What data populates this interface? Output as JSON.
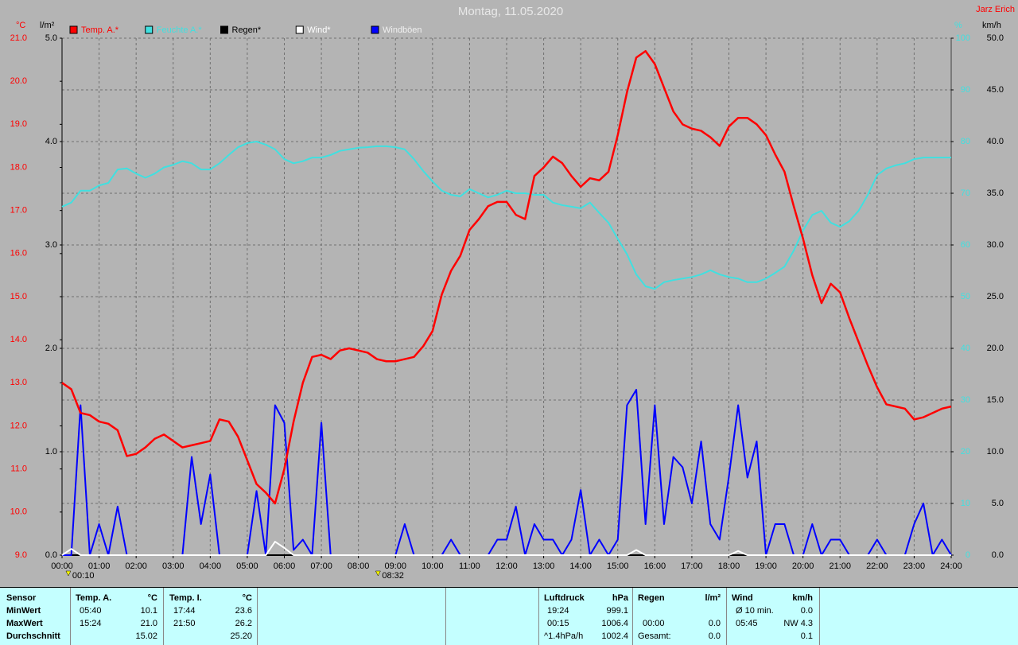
{
  "chart_data": {
    "type": "line",
    "title": "Montag, 11.05.2020",
    "author": "Jarz Erich",
    "axis_labels": {
      "y": "°C",
      "y3": "l/m²",
      "y2": "%",
      "y4": "km/h"
    },
    "xlim": [
      0,
      24
    ],
    "xticks": [
      {
        "value": 0,
        "label": "00:00"
      },
      {
        "value": 1,
        "label": "01:00"
      },
      {
        "value": 2,
        "label": "02:00"
      },
      {
        "value": 3,
        "label": "03:00"
      },
      {
        "value": 4,
        "label": "04:00"
      },
      {
        "value": 5,
        "label": "05:00"
      },
      {
        "value": 6,
        "label": "06:00"
      },
      {
        "value": 7,
        "label": "07:00"
      },
      {
        "value": 8,
        "label": "08:00"
      },
      {
        "value": 9,
        "label": "09:00"
      },
      {
        "value": 10,
        "label": "10:00"
      },
      {
        "value": 11,
        "label": "11:00"
      },
      {
        "value": 12,
        "label": "12:00"
      },
      {
        "value": 13,
        "label": "13:00"
      },
      {
        "value": 14,
        "label": "14:00"
      },
      {
        "value": 15,
        "label": "15:00"
      },
      {
        "value": 16,
        "label": "16:00"
      },
      {
        "value": 17,
        "label": "17:00"
      },
      {
        "value": 18,
        "label": "18:00"
      },
      {
        "value": 19,
        "label": "19:00"
      },
      {
        "value": 20,
        "label": "20:00"
      },
      {
        "value": 21,
        "label": "21:00"
      },
      {
        "value": 22,
        "label": "22:00"
      },
      {
        "value": 23,
        "label": "23:00"
      },
      {
        "value": 24,
        "label": "24:00"
      }
    ],
    "ylim": [
      9,
      21
    ],
    "yticks": [
      {
        "value": 9,
        "label": "9.0"
      },
      {
        "value": 10,
        "label": "10.0"
      },
      {
        "value": 11,
        "label": "11.0"
      },
      {
        "value": 12,
        "label": "12.0"
      },
      {
        "value": 13,
        "label": "13.0"
      },
      {
        "value": 14,
        "label": "14.0"
      },
      {
        "value": 15,
        "label": "15.0"
      },
      {
        "value": 16,
        "label": "16.0"
      },
      {
        "value": 17,
        "label": "17.0"
      },
      {
        "value": 18,
        "label": "18.0"
      },
      {
        "value": 19,
        "label": "19.0"
      },
      {
        "value": 20,
        "label": "20.0"
      },
      {
        "value": 21,
        "label": "21.0"
      }
    ],
    "y3lim": [
      0,
      5
    ],
    "y3ticks": [
      {
        "value": 0,
        "label": "0.0"
      },
      {
        "value": 1,
        "label": "1.0"
      },
      {
        "value": 2,
        "label": "2.0"
      },
      {
        "value": 3,
        "label": "3.0"
      },
      {
        "value": 4,
        "label": "4.0"
      },
      {
        "value": 5,
        "label": "5.0"
      }
    ],
    "y2lim": [
      0,
      100
    ],
    "y2ticks": [
      0,
      10,
      20,
      30,
      40,
      50,
      60,
      70,
      80,
      90,
      100
    ],
    "y4lim": [
      0,
      50
    ],
    "y4ticks": [
      {
        "value": 0,
        "label": "0.0"
      },
      {
        "value": 5,
        "label": "5.0"
      },
      {
        "value": 10,
        "label": "10.0"
      },
      {
        "value": 15,
        "label": "15.0"
      },
      {
        "value": 20,
        "label": "20.0"
      },
      {
        "value": 25,
        "label": "25.0"
      },
      {
        "value": 30,
        "label": "30.0"
      },
      {
        "value": 35,
        "label": "35.0"
      },
      {
        "value": 40,
        "label": "40.0"
      },
      {
        "value": 45,
        "label": "45.0"
      },
      {
        "value": 50,
        "label": "50.0"
      }
    ],
    "grid": true,
    "x": [
      0,
      0.25,
      0.5,
      0.75,
      1,
      1.25,
      1.5,
      1.75,
      2,
      2.25,
      2.5,
      2.75,
      3,
      3.25,
      3.5,
      3.75,
      4,
      4.25,
      4.5,
      4.75,
      5,
      5.25,
      5.5,
      5.75,
      6,
      6.25,
      6.5,
      6.75,
      7,
      7.25,
      7.5,
      7.75,
      8,
      8.25,
      8.5,
      8.75,
      9,
      9.25,
      9.5,
      9.75,
      10,
      10.25,
      10.5,
      10.75,
      11,
      11.25,
      11.5,
      11.75,
      12,
      12.25,
      12.5,
      12.75,
      13,
      13.25,
      13.5,
      13.75,
      14,
      14.25,
      14.5,
      14.75,
      15,
      15.25,
      15.5,
      15.75,
      16,
      16.25,
      16.5,
      16.75,
      17,
      17.25,
      17.5,
      17.75,
      18,
      18.25,
      18.5,
      18.75,
      19,
      19.25,
      19.5,
      19.75,
      20,
      20.25,
      20.5,
      20.75,
      21,
      21.25,
      21.5,
      21.75,
      22,
      22.25,
      22.5,
      22.75,
      23,
      23.25,
      23.5,
      23.75,
      24
    ],
    "series": [
      {
        "name": "Temp. A.*",
        "color": "#ff0000",
        "axis": "y",
        "values": [
          13.0,
          12.85,
          12.3,
          12.25,
          12.1,
          12.05,
          11.9,
          11.3,
          11.35,
          11.5,
          11.7,
          11.8,
          11.65,
          11.5,
          11.55,
          11.6,
          11.65,
          12.15,
          12.1,
          11.75,
          11.2,
          10.65,
          10.45,
          10.2,
          11.0,
          12.1,
          13.0,
          13.6,
          13.65,
          13.55,
          13.75,
          13.8,
          13.75,
          13.7,
          13.55,
          13.5,
          13.5,
          13.55,
          13.6,
          13.85,
          14.2,
          15.05,
          15.6,
          15.95,
          16.55,
          16.8,
          17.1,
          17.2,
          17.2,
          16.9,
          16.8,
          17.8,
          18.0,
          18.25,
          18.1,
          17.8,
          17.55,
          17.75,
          17.7,
          17.9,
          18.75,
          19.75,
          20.55,
          20.7,
          20.4,
          19.85,
          19.3,
          19.0,
          18.9,
          18.85,
          18.7,
          18.5,
          18.95,
          19.15,
          19.15,
          19.0,
          18.75,
          18.3,
          17.9,
          17.1,
          16.35,
          15.5,
          14.85,
          15.3,
          15.1,
          14.5,
          13.95,
          13.4,
          12.9,
          12.5,
          12.45,
          12.4,
          12.15,
          12.2,
          12.3,
          12.4,
          12.45
        ]
      },
      {
        "name": "Feuchte A.*",
        "color": "#40e0e0",
        "axis": "y2",
        "values": [
          67.4,
          68.2,
          70.5,
          70.5,
          71.5,
          72,
          74.6,
          74.8,
          73.8,
          73,
          73.8,
          75,
          75.5,
          76.2,
          75.8,
          74.6,
          74.6,
          75.8,
          77.4,
          78.9,
          79.7,
          80,
          79.4,
          78.5,
          76.6,
          75.8,
          76.2,
          76.9,
          76.9,
          77.4,
          78.2,
          78.5,
          78.8,
          78.9,
          79.1,
          79.1,
          78.9,
          78.5,
          76.6,
          74.3,
          72.3,
          70.5,
          69.7,
          69.4,
          70.8,
          70,
          69.2,
          69.7,
          70.5,
          70,
          70,
          69.7,
          69.7,
          68.2,
          67.7,
          67.4,
          67.1,
          68.2,
          66.2,
          64.3,
          61.2,
          58.2,
          54.3,
          52,
          51.5,
          52.8,
          53.2,
          53.5,
          53.8,
          54.3,
          55.1,
          54.3,
          53.8,
          53.5,
          52.8,
          52.8,
          53.5,
          54.6,
          55.8,
          58.9,
          62.8,
          65.8,
          66.6,
          64.3,
          63.5,
          64.6,
          66.6,
          69.7,
          73.5,
          74.8,
          75.4,
          75.8,
          76.6,
          76.9,
          76.9,
          76.9,
          76.9
        ]
      },
      {
        "name": "Regen*",
        "color": "#000000",
        "axis": "y3",
        "values": [
          0,
          0,
          0,
          0,
          0,
          0,
          0,
          0,
          0,
          0,
          0,
          0,
          0,
          0,
          0,
          0,
          0,
          0,
          0,
          0,
          0,
          0,
          0,
          0,
          0,
          0,
          0,
          0,
          0,
          0,
          0,
          0,
          0,
          0,
          0,
          0,
          0,
          0,
          0,
          0,
          0,
          0,
          0,
          0,
          0,
          0,
          0,
          0,
          0,
          0,
          0,
          0,
          0,
          0,
          0,
          0,
          0,
          0,
          0,
          0,
          0,
          0,
          0,
          0,
          0,
          0,
          0,
          0,
          0,
          0,
          0,
          0,
          0,
          0,
          0,
          0,
          0,
          0,
          0,
          0,
          0,
          0,
          0,
          0,
          0,
          0,
          0,
          0,
          0,
          0,
          0,
          0,
          0,
          0,
          0,
          0,
          0
        ]
      },
      {
        "name": "Wind*",
        "color": "#ffffff",
        "axis": "y4",
        "values": [
          0,
          0.6,
          0,
          0,
          0,
          0,
          0,
          0,
          0,
          0,
          0,
          0,
          0,
          0,
          0,
          0,
          0,
          0,
          0,
          0,
          0,
          0,
          0,
          1.3,
          0.7,
          0,
          0,
          0,
          0,
          0,
          0,
          0,
          0,
          0,
          0,
          0,
          0,
          0,
          0,
          0,
          0,
          0,
          0,
          0,
          0,
          0,
          0,
          0,
          0,
          0,
          0,
          0,
          0,
          0,
          0,
          0,
          0,
          0,
          0,
          0,
          0,
          0,
          0.5,
          0,
          0,
          0,
          0,
          0,
          0,
          0,
          0,
          0,
          0,
          0.4,
          0,
          0,
          0,
          0,
          0,
          0,
          0,
          0,
          0,
          0,
          0,
          0,
          0,
          0,
          0,
          0,
          0,
          0,
          0,
          0,
          0,
          0,
          0
        ]
      },
      {
        "name": "Windböen",
        "color": "#0000ff",
        "axis": "y4",
        "values": [
          0,
          0,
          14.5,
          0,
          3.0,
          0,
          4.7,
          0,
          0,
          0,
          0,
          0,
          0,
          0,
          9.5,
          3.0,
          7.8,
          0,
          0,
          0,
          0,
          6.2,
          0,
          14.5,
          12.8,
          0.5,
          1.5,
          0,
          12.8,
          0,
          0,
          0,
          0,
          0,
          0,
          0,
          0,
          3.0,
          0,
          0,
          0,
          0,
          1.5,
          0,
          0,
          0,
          0,
          1.5,
          1.5,
          4.7,
          0,
          3.0,
          1.5,
          1.5,
          0,
          1.5,
          6.3,
          0,
          1.5,
          0,
          1.5,
          14.5,
          16.0,
          3.0,
          14.5,
          3.0,
          9.5,
          8.5,
          5.0,
          11.0,
          3.0,
          1.5,
          7.6,
          14.5,
          7.5,
          11.0,
          0,
          3.0,
          3.0,
          0,
          0,
          3.0,
          0,
          1.5,
          1.5,
          0,
          0,
          0,
          1.5,
          0,
          0,
          0,
          3.0,
          5.0,
          0,
          1.5,
          0
        ]
      }
    ],
    "draw_order": [
      2,
      4,
      3,
      1,
      0
    ],
    "annotations": [
      {
        "x": 0.17,
        "text": "00:10"
      },
      {
        "x": 8.53,
        "text": "08:32"
      }
    ]
  },
  "table": {
    "header": [
      "Sensor",
      "Temp. A.",
      "°C",
      "Temp. I.",
      "°C",
      "Luftdruck",
      "hPa",
      "Regen",
      "l/m²",
      "Wind",
      "km/h"
    ],
    "rows": [
      [
        "MinWert",
        "05:40",
        "10.1",
        "17:44",
        "23.6",
        "19:24",
        "999.1",
        null,
        null,
        "Ø 10 min.",
        "0.0"
      ],
      [
        "MaxWert",
        "15:24",
        "21.0",
        "21:50",
        "26.2",
        "00:15",
        "1006.4",
        "00:00",
        "0.0",
        "05:45",
        "NW 4.3"
      ],
      [
        "Durchschnitt",
        null,
        "15.02",
        null,
        "25.20",
        "^1.4hPa/h",
        "1002.4",
        "Gesamt:",
        "0.0",
        null,
        "0.1"
      ]
    ]
  }
}
